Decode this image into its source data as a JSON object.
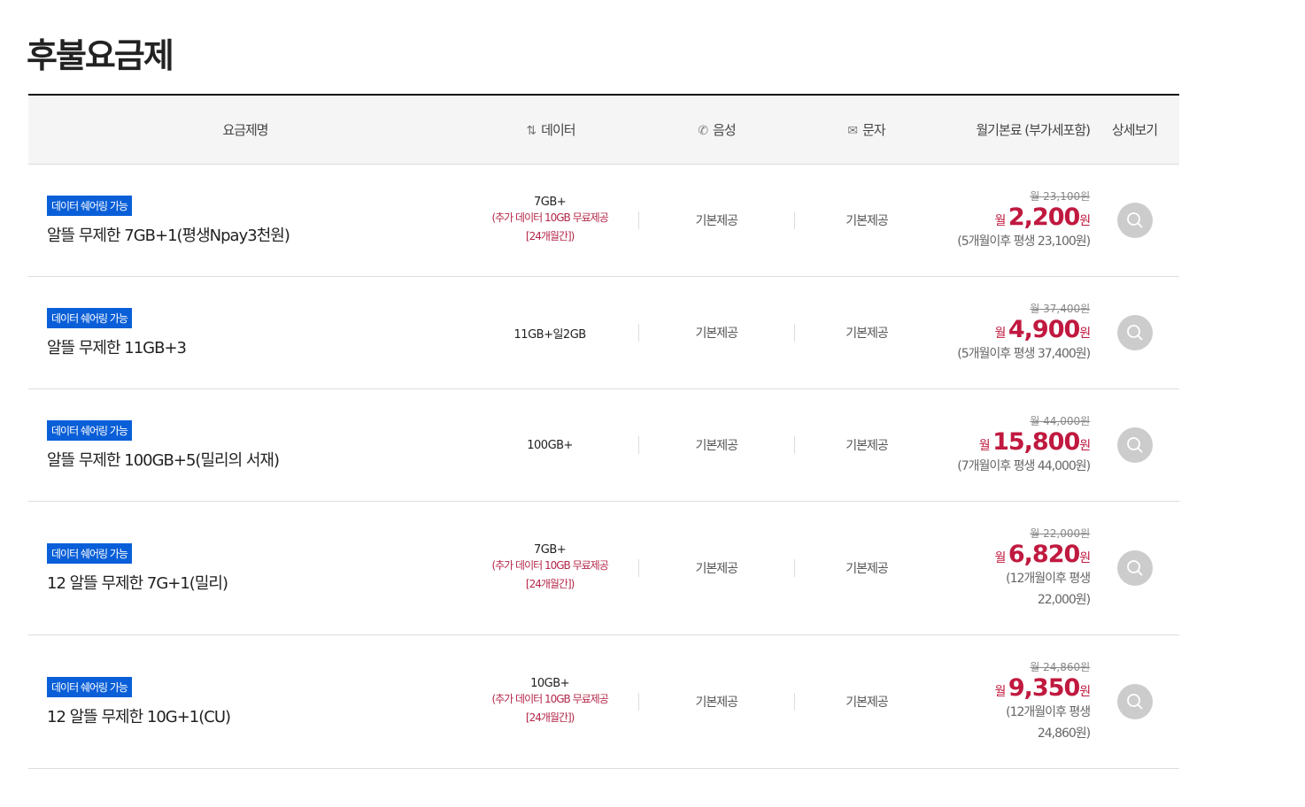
{
  "title": "후불요금제",
  "columns": {
    "name": "요금제명",
    "data": "데이터",
    "voice": "음성",
    "sms": "문자",
    "price": "월기본료 (부가세포함)",
    "detail": "상세보기"
  },
  "colors": {
    "badge": "#0a5fd8",
    "price": "#c0193f"
  },
  "plans": [
    {
      "badge": "데이터 쉐어링 가능",
      "name": "알뜰 무제한 7GB+1(평생Npay3천원)",
      "data": "7GB+",
      "data_sub1": "(추가 데이터 10GB 무료제공",
      "data_sub2": "[24개월간])",
      "voice": "기본제공",
      "sms": "기본제공",
      "orig": "월 23,100원",
      "prefix": "월",
      "price": "2,200",
      "unit": "원",
      "after1": "(5개월이후 평생 23,100원)",
      "after2": ""
    },
    {
      "badge": "데이터 쉐어링 가능",
      "name": "알뜰 무제한 11GB+3",
      "data": "11GB+일2GB",
      "data_sub1": "",
      "data_sub2": "",
      "voice": "기본제공",
      "sms": "기본제공",
      "orig": "월 37,400원",
      "prefix": "월",
      "price": "4,900",
      "unit": "원",
      "after1": "(5개월이후 평생 37,400원)",
      "after2": ""
    },
    {
      "badge": "데이터 쉐어링 가능",
      "name": "알뜰 무제한 100GB+5(밀리의 서재)",
      "data": "100GB+",
      "data_sub1": "",
      "data_sub2": "",
      "voice": "기본제공",
      "sms": "기본제공",
      "orig": "월 44,000원",
      "prefix": "월",
      "price": "15,800",
      "unit": "원",
      "after1": "(7개월이후 평생 44,000원)",
      "after2": ""
    },
    {
      "badge": "데이터 쉐어링 가능",
      "name": "12 알뜰 무제한 7G+1(밀리)",
      "data": "7GB+",
      "data_sub1": "(추가 데이터 10GB 무료제공",
      "data_sub2": "[24개월간])",
      "voice": "기본제공",
      "sms": "기본제공",
      "orig": "월 22,000원",
      "prefix": "월",
      "price": "6,820",
      "unit": "원",
      "after1": "(12개월이후 평생",
      "after2": "22,000원)"
    },
    {
      "badge": "데이터 쉐어링 가능",
      "name": "12 알뜰 무제한 10G+1(CU)",
      "data": "10GB+",
      "data_sub1": "(추가 데이터 10GB 무료제공",
      "data_sub2": "[24개월간])",
      "voice": "기본제공",
      "sms": "기본제공",
      "orig": "월 24,860원",
      "prefix": "월",
      "price": "9,350",
      "unit": "원",
      "after1": "(12개월이후 평생",
      "after2": "24,860원)"
    }
  ]
}
